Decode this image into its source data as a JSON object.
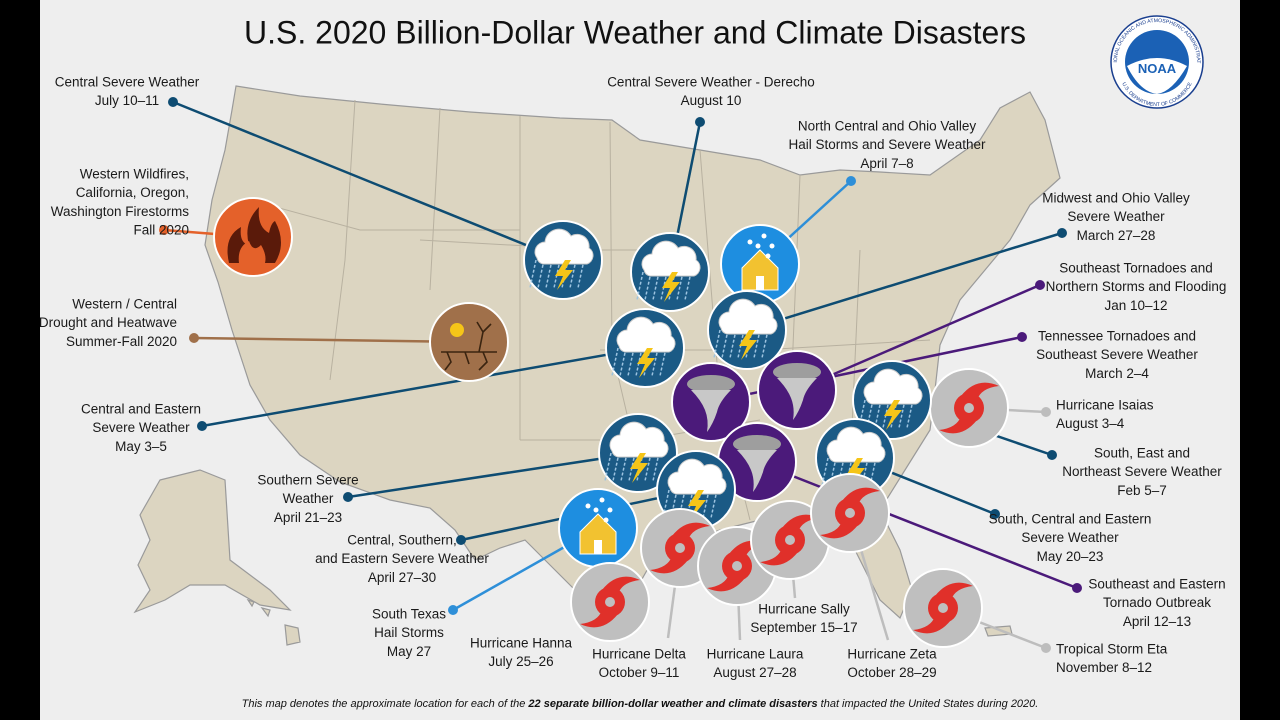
{
  "title": "U.S. 2020 Billion-Dollar Weather and Climate Disasters",
  "logo": {
    "name": "NOAA",
    "ring_top": "NATIONAL OCEANIC AND ATMOSPHERIC ADMINISTRATION",
    "ring_bottom": "U.S. DEPARTMENT OF COMMERCE"
  },
  "events": [
    {
      "lines": [
        "Central Severe Weather",
        "July 10–11"
      ],
      "icon": "severe",
      "color": "#0e4c72"
    },
    {
      "lines": [
        "Central Severe Weather - Derecho",
        "August 10"
      ],
      "icon": "severe",
      "color": "#0e4c72"
    },
    {
      "lines": [
        "North Central and Ohio Valley",
        "Hail Storms and Severe Weather",
        "April 7–8"
      ],
      "icon": "hail",
      "color": "#2e8fd8"
    },
    {
      "lines": [
        "Western Wildfires,",
        "California, Oregon,",
        "Washington Firestorms",
        "Fall 2020"
      ],
      "icon": "wildfire",
      "color": "#e4612a"
    },
    {
      "lines": [
        "Western / Central",
        "Drought and Heatwave",
        "Summer-Fall 2020"
      ],
      "icon": "drought",
      "color": "#a0704a"
    },
    {
      "lines": [
        "Midwest and Ohio Valley",
        "Severe Weather",
        "March 27–28"
      ],
      "icon": "severe",
      "color": "#0e4c72"
    },
    {
      "lines": [
        "Southeast Tornadoes and",
        "Northern Storms and Flooding",
        "Jan 10–12"
      ],
      "icon": "tornado",
      "color": "#4b1a7a"
    },
    {
      "lines": [
        "Tennessee Tornadoes and",
        "Southeast Severe Weather",
        "March 2–4"
      ],
      "icon": "tornado",
      "color": "#4b1a7a"
    },
    {
      "lines": [
        "Central and Eastern",
        "Severe Weather",
        "May 3–5"
      ],
      "icon": "severe",
      "color": "#0e4c72"
    },
    {
      "lines": [
        "Hurricane Isaias",
        "August 3–4"
      ],
      "icon": "hurricane",
      "color": "#bdbdbd"
    },
    {
      "lines": [
        "South, East and",
        "Northeast Severe Weather",
        "Feb 5–7"
      ],
      "icon": "severe",
      "color": "#0e4c72"
    },
    {
      "lines": [
        "Southern Severe",
        "Weather",
        "April 21–23"
      ],
      "icon": "severe",
      "color": "#0e4c72"
    },
    {
      "lines": [
        "Southeast and Eastern",
        "Tornado Outbreak",
        "April 12–13"
      ],
      "icon": "tornado",
      "color": "#4b1a7a"
    },
    {
      "lines": [
        "South, Central and Eastern",
        "Severe Weather",
        "May 20–23"
      ],
      "icon": "severe",
      "color": "#0e4c72"
    },
    {
      "lines": [
        "Central, Southern,",
        "and Eastern Severe Weather",
        "April 27–30"
      ],
      "icon": "severe",
      "color": "#0e4c72"
    },
    {
      "lines": [
        "South Texas",
        "Hail Storms",
        "May 27"
      ],
      "icon": "hail",
      "color": "#2e8fd8"
    },
    {
      "lines": [
        "Hurricane Hanna",
        "July 25–26"
      ],
      "icon": "hurricane",
      "color": "#bdbdbd"
    },
    {
      "lines": [
        "Hurricane Delta",
        "October 9–11"
      ],
      "icon": "hurricane",
      "color": "#bdbdbd"
    },
    {
      "lines": [
        "Hurricane Laura",
        "August 27–28"
      ],
      "icon": "hurricane",
      "color": "#bdbdbd"
    },
    {
      "lines": [
        "Hurricane Sally",
        "September 15–17"
      ],
      "icon": "hurricane",
      "color": "#bdbdbd"
    },
    {
      "lines": [
        "Hurricane Zeta",
        "October 28–29"
      ],
      "icon": "hurricane",
      "color": "#bdbdbd"
    },
    {
      "lines": [
        "Tropical Storm Eta",
        "November 8–12"
      ],
      "icon": "hurricane",
      "color": "#bdbdbd"
    }
  ],
  "footnote": {
    "before": "This map denotes the approximate location for each of the ",
    "bold": "22 separate billion-dollar weather and climate disasters",
    "after": " that impacted the United States during 2020."
  }
}
